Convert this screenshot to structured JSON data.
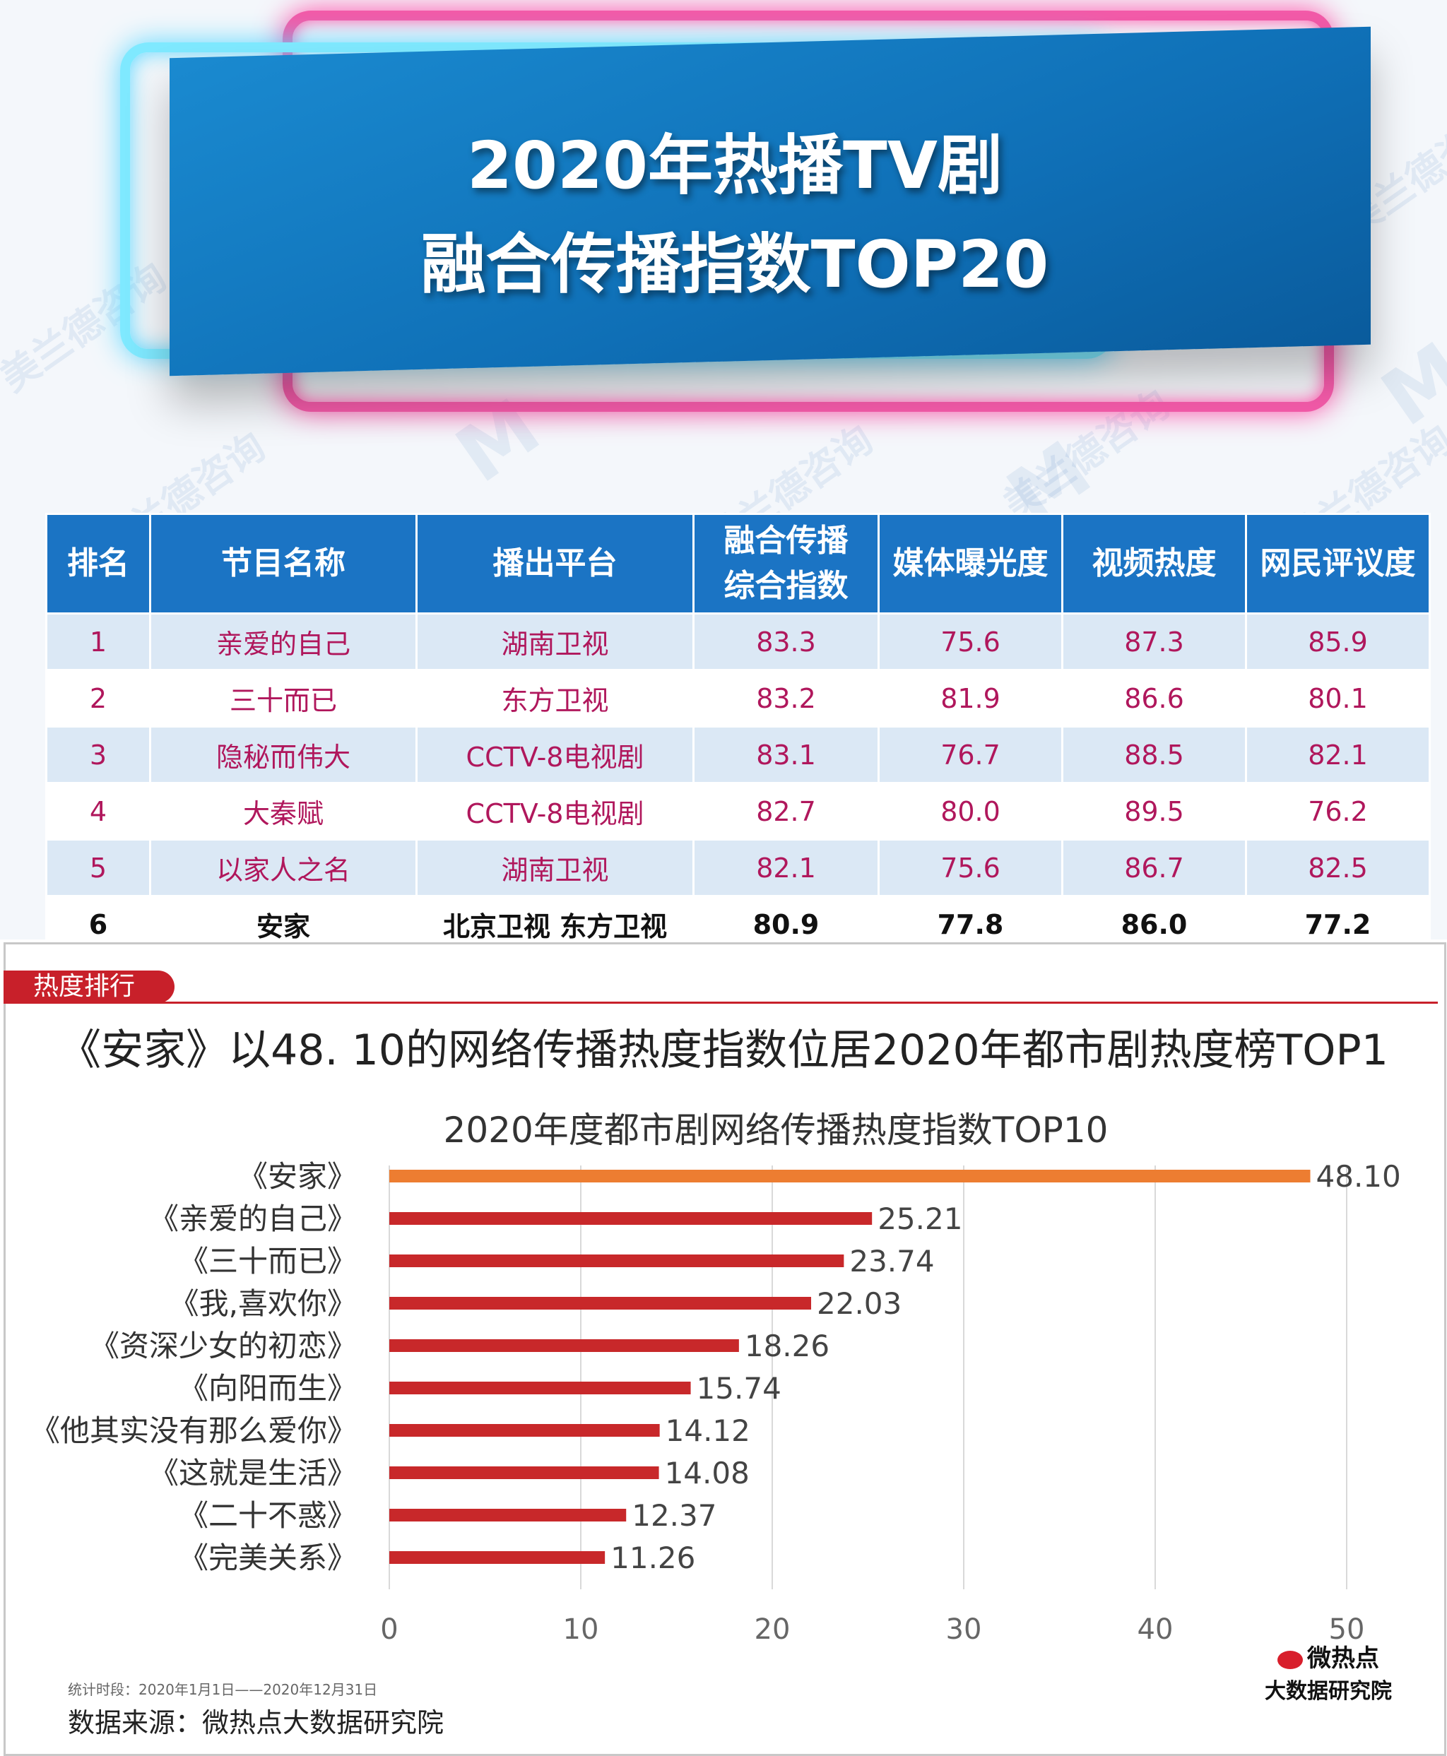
{
  "poster": {
    "title_line1": "2020年热播TV剧",
    "title_line2": "融合传播指数TOP20",
    "watermark_text": "美兰德咨询",
    "watermark_logo": "M"
  },
  "table": {
    "headers": [
      "排名",
      "节目名称",
      "播出平台",
      "融合传播综合指数",
      "媒体曝光度",
      "视频热度",
      "网民评议度"
    ],
    "header_index_line1": "融合传播",
    "header_index_line2": "综合指数",
    "rows": [
      {
        "rank": "1",
        "name": "亲爱的自己",
        "platform": "湖南卫视",
        "index": "83.3",
        "media": "75.6",
        "video": "87.3",
        "review": "85.9"
      },
      {
        "rank": "2",
        "name": "三十而已",
        "platform": "东方卫视",
        "index": "83.2",
        "media": "81.9",
        "video": "86.6",
        "review": "80.1"
      },
      {
        "rank": "3",
        "name": "隐秘而伟大",
        "platform": "CCTV-8电视剧",
        "index": "83.1",
        "media": "76.7",
        "video": "88.5",
        "review": "82.1"
      },
      {
        "rank": "4",
        "name": "大秦赋",
        "platform": "CCTV-8电视剧",
        "index": "82.7",
        "media": "80.0",
        "video": "89.5",
        "review": "76.2"
      },
      {
        "rank": "5",
        "name": "以家人之名",
        "platform": "湖南卫视",
        "index": "82.1",
        "media": "75.6",
        "video": "86.7",
        "review": "82.5"
      },
      {
        "rank": "6",
        "name": "安家",
        "platform": "北京卫视 东方卫视",
        "index": "80.9",
        "media": "77.8",
        "video": "86.0",
        "review": "77.2"
      }
    ]
  },
  "section": {
    "tag": "热度排行",
    "headline": "《安家》以48. 10的网络传播热度指数位居2020年都市剧热度榜TOP1"
  },
  "chart_data": {
    "type": "bar",
    "orientation": "horizontal",
    "title": "2020年度都市剧网络传播热度指数TOP10",
    "categories": [
      "《安家》",
      "《亲爱的自己》",
      "《三十而已》",
      "《我,喜欢你》",
      "《资深少女的初恋》",
      "《向阳而生》",
      "《他其实没有那么爱你》",
      "《这就是生活》",
      "《二十不惑》",
      "《完美关系》"
    ],
    "values": [
      48.1,
      25.21,
      23.74,
      22.03,
      18.26,
      15.74,
      14.12,
      14.08,
      12.37,
      11.26
    ],
    "value_labels": [
      "48.10",
      "25.21",
      "23.74",
      "22.03",
      "18.26",
      "15.74",
      "14.12",
      "14.08",
      "12.37",
      "11.26"
    ],
    "xlim": [
      0,
      50
    ],
    "xticks": [
      0,
      10,
      20,
      30,
      40,
      50
    ],
    "grid": "vertical",
    "colors": {
      "highlight": "#ed7d31",
      "bar": "#c8282a",
      "grid": "#d9d9d9"
    }
  },
  "footer": {
    "period": "统计时段：2020年1月1日——2020年12月31日",
    "source": "数据来源：微热点大数据研究院",
    "brand_line1": "微热点",
    "brand_line2": "大数据研究院"
  }
}
